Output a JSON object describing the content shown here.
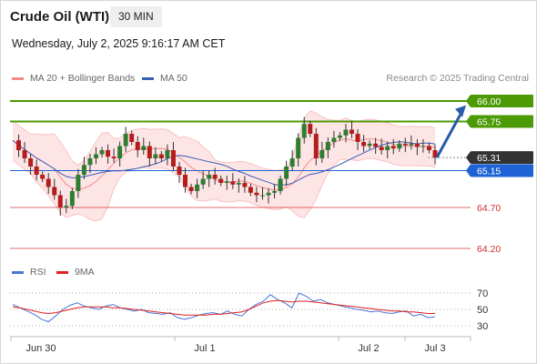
{
  "header": {
    "instrument": "Crude Oil (WTI)",
    "timeframe": "30 MIN",
    "datetime": "Wednesday, July 2, 2025 9:16:17 AM CET"
  },
  "legend": {
    "bollinger_label": "MA 20 + Bollinger Bands",
    "ma50_label": "MA 50",
    "credit": "Research © 2025 Trading Central"
  },
  "rsi_legend": {
    "rsi_label": "RSI",
    "ma_label": "9MA"
  },
  "colors": {
    "bullish_level": "#4c9a06",
    "current_price": "#333333",
    "pivot": "#1e63d6",
    "support": "#d32f2f",
    "bollinger": "#f48a8a",
    "ma50": "#3b5bb5",
    "rsi": "#4a74d8",
    "rsi_ma": "#e02020",
    "arrow": "#2a5aa8"
  },
  "chart_data": [
    {
      "type": "candlestick",
      "title": "Crude Oil (WTI)",
      "timeframe": "30 MIN",
      "ylim": [
        64.0,
        66.2
      ],
      "x_ticks": [
        "Jun 30",
        "Jul 1",
        "Jul 2",
        "Jul 3"
      ],
      "price_levels": [
        {
          "label": "66.00",
          "value": 66.0,
          "kind": "resistance"
        },
        {
          "label": "65.75",
          "value": 65.75,
          "kind": "resistance"
        },
        {
          "label": "65.31",
          "value": 65.31,
          "kind": "last"
        },
        {
          "label": "65.15",
          "value": 65.15,
          "kind": "pivot"
        },
        {
          "label": "64.70",
          "value": 64.7,
          "kind": "support"
        },
        {
          "label": "64.20",
          "value": 64.2,
          "kind": "support"
        }
      ],
      "price_path": [
        65.52,
        65.4,
        65.3,
        65.2,
        65.1,
        65.05,
        64.95,
        64.85,
        64.7,
        64.72,
        64.9,
        65.1,
        65.22,
        65.3,
        65.35,
        65.4,
        65.32,
        65.3,
        65.45,
        65.6,
        65.5,
        65.4,
        65.45,
        65.3,
        65.35,
        65.3,
        65.4,
        65.2,
        65.1,
        64.95,
        64.9,
        64.98,
        65.05,
        65.1,
        65.05,
        65.0,
        65.02,
        64.98,
        65.0,
        64.95,
        64.88,
        64.85,
        64.85,
        64.88,
        64.9,
        65.05,
        65.2,
        65.3,
        65.55,
        65.72,
        65.6,
        65.3,
        65.4,
        65.5,
        65.55,
        65.58,
        65.65,
        65.6,
        65.5,
        65.45,
        65.48,
        65.44,
        65.4,
        65.45,
        65.42,
        65.48,
        65.46,
        65.48,
        65.44,
        65.45,
        65.4,
        65.31
      ],
      "bollinger": {
        "center_label": "MA 20",
        "band_label": "Bollinger Bands"
      },
      "ma50_label": "MA 50",
      "forecast_arrow": {
        "from": 65.31,
        "to": 65.97
      }
    },
    {
      "type": "line",
      "name": "RSI",
      "ylim": [
        20,
        80
      ],
      "y_ticks": [
        70,
        50,
        30
      ],
      "series": [
        {
          "name": "RSI",
          "values": [
            56,
            52,
            48,
            44,
            38,
            35,
            42,
            50,
            55,
            58,
            54,
            52,
            50,
            54,
            56,
            52,
            50,
            48,
            50,
            46,
            45,
            44,
            46,
            40,
            38,
            40,
            43,
            45,
            46,
            44,
            48,
            44,
            42,
            50,
            56,
            60,
            68,
            62,
            58,
            52,
            70,
            66,
            60,
            62,
            58,
            56,
            54,
            52,
            50,
            49,
            47,
            48,
            46,
            45,
            47,
            48,
            42,
            44,
            40,
            41
          ]
        },
        {
          "name": "9MA",
          "values": [
            53,
            52,
            50,
            48,
            46,
            45,
            46,
            48,
            50,
            52,
            53,
            53,
            53,
            53,
            52,
            52,
            51,
            50,
            49,
            48,
            47,
            46,
            45,
            44,
            43,
            43,
            43,
            43,
            44,
            44,
            45,
            46,
            47,
            50,
            54,
            58,
            60,
            61,
            60,
            59,
            60,
            60,
            59,
            58,
            57,
            56,
            55,
            54,
            53,
            52,
            51,
            50,
            49,
            48,
            48,
            47,
            47,
            46,
            45,
            45
          ]
        }
      ]
    }
  ]
}
